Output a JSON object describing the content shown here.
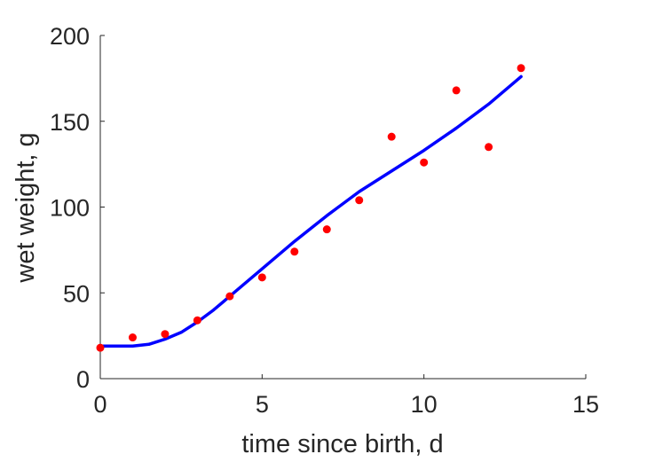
{
  "chart_data": {
    "type": "scatter",
    "xlabel": "time since birth, d",
    "ylabel": "wet weight, g",
    "xlim": [
      0,
      15
    ],
    "ylim": [
      0,
      200
    ],
    "xticks": [
      "0",
      "5",
      "10",
      "15"
    ],
    "yticks": [
      "0",
      "50",
      "100",
      "150",
      "200"
    ],
    "grid": false,
    "legend": "none",
    "series": [
      {
        "kind": "scatter",
        "color": "#ff0000",
        "x": [
          0,
          1,
          2,
          3,
          4,
          5,
          6,
          7,
          8,
          9,
          10,
          11,
          12,
          13
        ],
        "y": [
          18,
          24,
          26,
          34,
          48,
          59,
          74,
          87,
          104,
          141,
          126,
          168,
          135,
          181
        ]
      },
      {
        "kind": "line",
        "color": "#0000ff",
        "x": [
          0,
          0.5,
          1,
          1.5,
          2,
          2.5,
          3,
          3.5,
          4,
          5,
          6,
          7,
          8,
          9,
          10,
          11,
          12,
          13
        ],
        "y": [
          19,
          19,
          19,
          20,
          23,
          27,
          33,
          40,
          48,
          64,
          80,
          95,
          109,
          121,
          133,
          146,
          160,
          176
        ]
      }
    ]
  }
}
